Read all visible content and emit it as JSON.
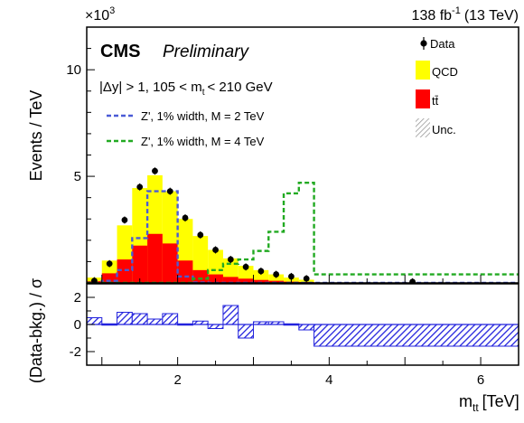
{
  "header": {
    "lumi": "138 fb",
    "lumi_sup": "-1",
    "energy": "(13 TeV)",
    "multiplier_base": "×10",
    "multiplier_exp": "3",
    "experiment": "CMS",
    "status": "Preliminary",
    "selection_pre": "|Δy| > 1, 105 < m",
    "selection_sub": "t",
    "selection_post": "< 210 GeV"
  },
  "legend": {
    "data": "Data",
    "qcd": "QCD",
    "ttbar": "tt̄",
    "unc": "Unc.",
    "zp2": "Z', 1% width, M = 2 TeV",
    "zp4": "Z', 1% width, M = 4 TeV"
  },
  "colors": {
    "qcd": "#ffff00",
    "ttbar": "#ff0000",
    "zp2": "#4a5bd6",
    "zp4": "#22aa22",
    "ratio": "#2222dd",
    "unc": "#999999"
  },
  "chart_data": [
    {
      "type": "bar",
      "title": "",
      "xlabel": "m_tt [TeV]",
      "ylabel": "Events / TeV",
      "y_scale_note": "×10^3",
      "xlim": [
        0.8,
        6.5
      ],
      "ylim": [
        0,
        12
      ],
      "x_ticks": [
        2,
        4,
        6
      ],
      "y_ticks": [
        5,
        10
      ],
      "bin_edges": [
        0.8,
        1.0,
        1.2,
        1.4,
        1.6,
        1.8,
        2.0,
        2.2,
        2.4,
        2.6,
        2.8,
        3.0,
        3.2,
        3.4,
        3.6,
        3.8,
        6.5
      ],
      "series": [
        {
          "name": "tt̄",
          "kind": "stack-bottom",
          "values": [
            0.08,
            0.45,
            1.1,
            1.75,
            2.3,
            1.85,
            1.05,
            0.6,
            0.4,
            0.28,
            0.2,
            0.14,
            0.1,
            0.06,
            0.04,
            0.01
          ]
        },
        {
          "name": "QCD",
          "kind": "stack-top-total",
          "values": [
            0.25,
            1.05,
            2.7,
            4.45,
            5.05,
            4.3,
            3.0,
            2.2,
            1.55,
            1.15,
            0.8,
            0.6,
            0.4,
            0.25,
            0.15,
            0.02
          ]
        },
        {
          "name": "Z', 1% width, M = 2 TeV",
          "kind": "line",
          "values": [
            0.0,
            0.1,
            0.6,
            2.1,
            4.3,
            4.3,
            0.3,
            0.02,
            0.0,
            0.0,
            0.0,
            0.0,
            0.0,
            0.0,
            0.0,
            0.0
          ]
        },
        {
          "name": "Z', 1% width, M = 4 TeV",
          "kind": "line",
          "values": [
            0.0,
            0.0,
            0.0,
            0.0,
            0.0,
            0.0,
            0.0,
            0.2,
            0.6,
            0.9,
            1.1,
            1.5,
            2.4,
            4.2,
            4.7,
            0.4
          ]
        }
      ],
      "data_points": {
        "x": [
          0.9,
          1.1,
          1.3,
          1.5,
          1.7,
          1.9,
          2.1,
          2.3,
          2.5,
          2.7,
          2.9,
          3.1,
          3.3,
          3.5,
          3.7,
          5.1
        ],
        "y": [
          0.1,
          0.9,
          2.95,
          4.5,
          5.25,
          4.3,
          3.05,
          2.25,
          1.55,
          1.1,
          0.75,
          0.55,
          0.4,
          0.3,
          0.2,
          0.05
        ]
      }
    },
    {
      "type": "bar",
      "title": "",
      "xlabel": "m_tt [TeV]",
      "ylabel": "(Data-bkg.) / σ",
      "xlim": [
        0.8,
        6.5
      ],
      "ylim": [
        -3,
        3
      ],
      "x_ticks": [
        2,
        4,
        6
      ],
      "y_ticks": [
        -2,
        0,
        2
      ],
      "bin_edges": [
        0.8,
        1.0,
        1.2,
        1.4,
        1.6,
        1.8,
        2.0,
        2.2,
        2.4,
        2.6,
        2.8,
        3.0,
        3.2,
        3.4,
        3.6,
        3.8,
        6.5
      ],
      "values": [
        0.5,
        0.05,
        0.9,
        0.8,
        0.4,
        0.8,
        0.05,
        0.25,
        -0.3,
        1.4,
        -1.0,
        0.2,
        0.2,
        0.05,
        -0.4,
        -1.6
      ]
    }
  ]
}
